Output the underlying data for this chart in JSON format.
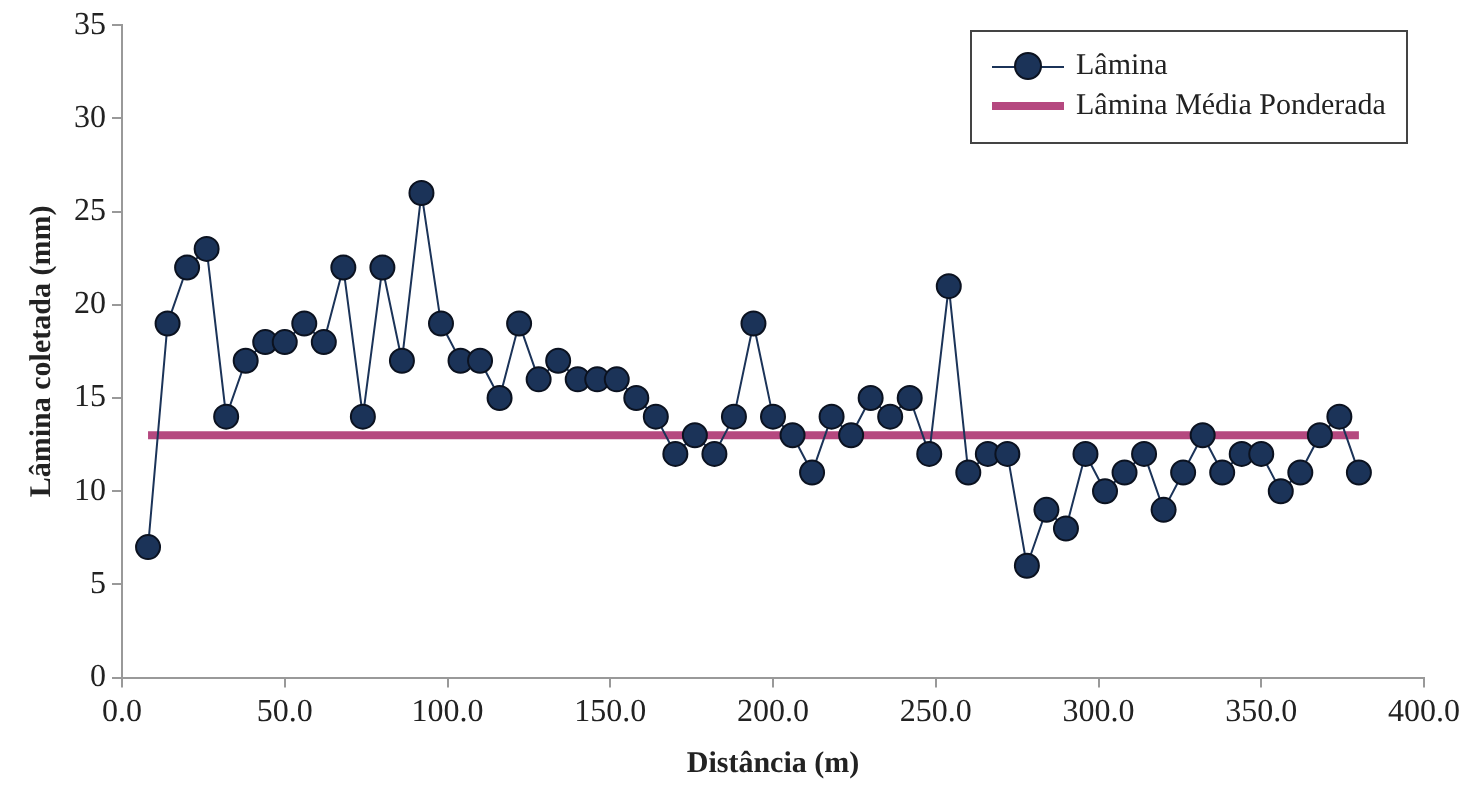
{
  "chart_data": {
    "type": "line",
    "xlabel": "Distância (m)",
    "ylabel": "Lâmina coletada (mm)",
    "xlim": [
      0,
      400
    ],
    "xticks": [
      {
        "value": 0,
        "label": "0.0"
      },
      {
        "value": 50,
        "label": "50.0"
      },
      {
        "value": 100,
        "label": "100.0"
      },
      {
        "value": 150,
        "label": "150.0"
      },
      {
        "value": 200,
        "label": "200.0"
      },
      {
        "value": 250,
        "label": "250.0"
      },
      {
        "value": 300,
        "label": "300.0"
      },
      {
        "value": 350,
        "label": "350.0"
      },
      {
        "value": 400,
        "label": "400.0"
      }
    ],
    "ylim": [
      0,
      35
    ],
    "yticks": [
      0,
      5,
      10,
      15,
      20,
      25,
      30,
      35
    ],
    "grid": false,
    "legend": "top right",
    "series": [
      {
        "name": "Lâmina",
        "color": "#1b3358",
        "marker": "circle",
        "x": [
          8,
          14,
          20,
          26,
          32,
          38,
          44,
          50,
          56,
          62,
          68,
          74,
          80,
          86,
          92,
          98,
          104,
          110,
          116,
          122,
          128,
          134,
          140,
          146,
          152,
          158,
          164,
          170,
          176,
          182,
          188,
          194,
          200,
          206,
          212,
          218,
          224,
          230,
          236,
          242,
          248,
          254,
          260,
          266,
          272,
          278,
          284,
          290,
          296,
          302,
          308,
          314,
          320,
          326,
          332,
          338,
          344,
          350,
          356,
          362,
          368,
          374,
          380
        ],
        "values": [
          7,
          19,
          22,
          23,
          14,
          17,
          18,
          18,
          19,
          18,
          22,
          14,
          22,
          17,
          26,
          19,
          17,
          17,
          15,
          19,
          16,
          17,
          16,
          16,
          16,
          15,
          14,
          12,
          13,
          12,
          14,
          19,
          14,
          13,
          11,
          14,
          13,
          15,
          14,
          15,
          12,
          21,
          11,
          12,
          12,
          6,
          9,
          8,
          12,
          10,
          11,
          12,
          9,
          11,
          13,
          11,
          12,
          12,
          10,
          11,
          13,
          14,
          11
        ]
      },
      {
        "name": "Lâmina Média Ponderada",
        "color": "#b5487f",
        "marker": "none",
        "x": [
          8,
          380
        ],
        "values": [
          13,
          13
        ]
      }
    ]
  }
}
